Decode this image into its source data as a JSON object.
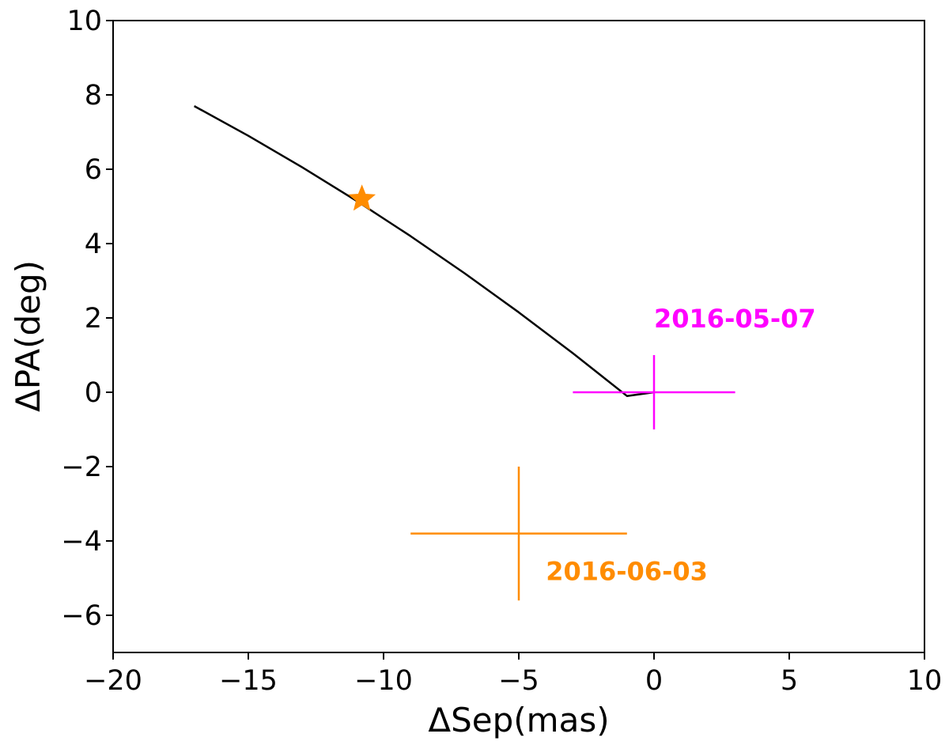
{
  "chart_data": {
    "type": "line",
    "title": "",
    "xlabel": "ΔSep(mas)",
    "ylabel": "ΔPA(deg)",
    "xlim": [
      -20,
      10
    ],
    "ylim": [
      -7,
      10
    ],
    "xticks": [
      -20,
      -15,
      -10,
      -5,
      0,
      5,
      10
    ],
    "yticks": [
      -6,
      -4,
      -2,
      0,
      2,
      4,
      6,
      8,
      10
    ],
    "xtick_labels": [
      "−20",
      "−15",
      "−10",
      "−5",
      "0",
      "5",
      "10"
    ],
    "ytick_labels": [
      "−6",
      "−4",
      "−2",
      "0",
      "2",
      "4",
      "6",
      "8",
      "10"
    ],
    "grid": false,
    "series": [
      {
        "kind": "line",
        "color": "#000000",
        "x": [
          -17.0,
          -15.0,
          -13.0,
          -11.0,
          -9.0,
          -7.0,
          -5.0,
          -3.0,
          -1.0,
          0.0
        ],
        "y": [
          7.7,
          6.9,
          6.05,
          5.15,
          4.2,
          3.2,
          2.15,
          1.05,
          -0.1,
          0.0
        ]
      },
      {
        "kind": "marker",
        "marker": "star",
        "color": "#ff8c00",
        "x": -10.8,
        "y": 5.2
      },
      {
        "kind": "errorbar",
        "color": "#ff00ff",
        "x": 0,
        "y": 0,
        "xerr": 3,
        "yerr": 1
      },
      {
        "kind": "errorbar",
        "color": "#ff8c00",
        "x": -5,
        "y": -3.8,
        "xerr": 4,
        "yerr": 1.8
      }
    ],
    "annotations": [
      {
        "text": "2016-05-07",
        "x": 0,
        "y": 2,
        "color": "#ff00ff"
      },
      {
        "text": "2016-06-03",
        "x": -4,
        "y": -4.8,
        "color": "#ff8c00"
      }
    ]
  }
}
